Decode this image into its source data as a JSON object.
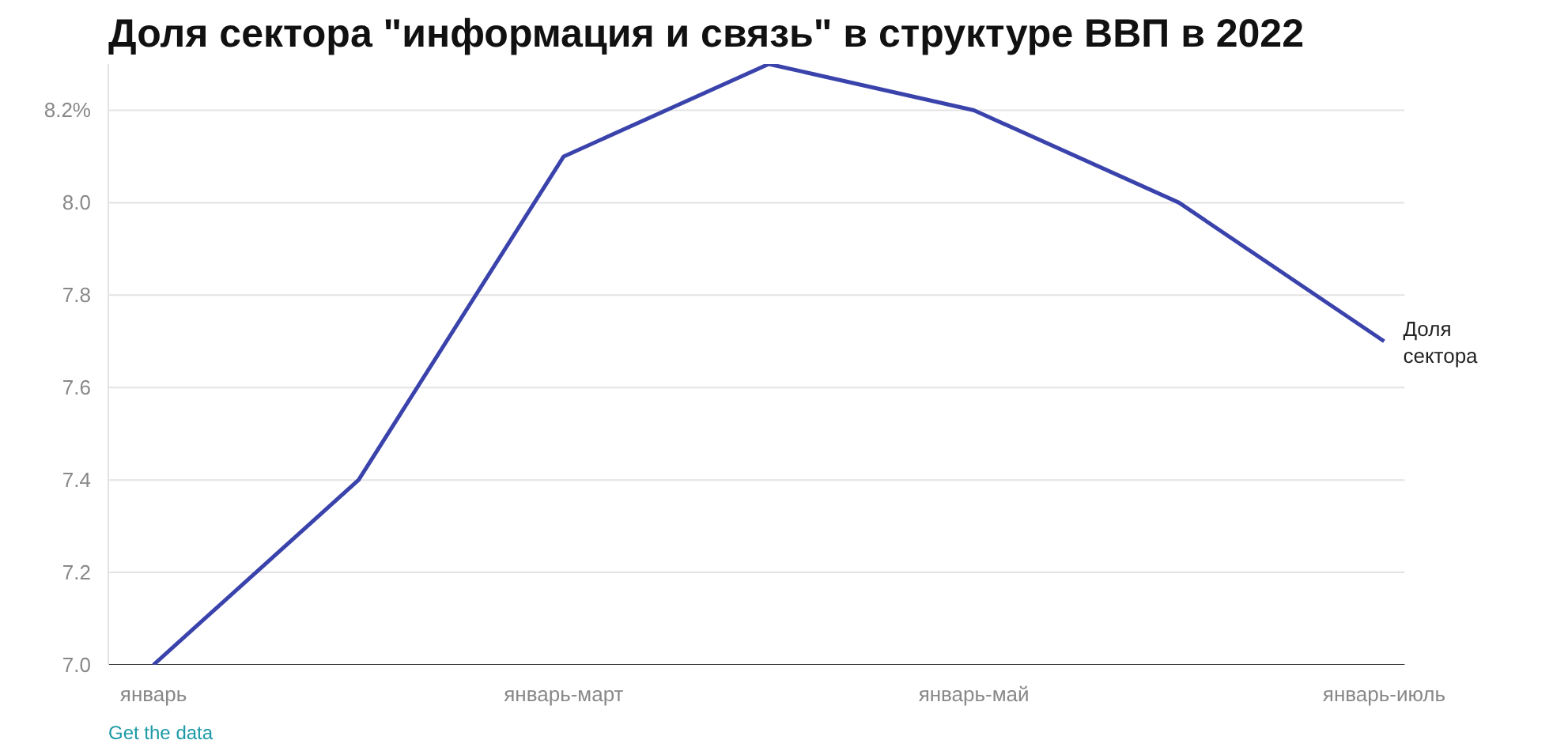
{
  "chart_data": {
    "type": "line",
    "title": "Доля сектора \"информация и связь\" в структуре ВВП в 2022",
    "categories": [
      "январь",
      null,
      "январь-март",
      null,
      "январь-май",
      null,
      "январь-июль"
    ],
    "series": [
      {
        "name": "Доля сектора",
        "color": "#3a43ab",
        "values": [
          7.0,
          7.4,
          8.1,
          8.3,
          8.2,
          8.0,
          7.7
        ]
      }
    ],
    "ylim": [
      7.0,
      8.3
    ],
    "yticks": [
      {
        "value": 7.0,
        "label": "7.0"
      },
      {
        "value": 7.2,
        "label": "7.2"
      },
      {
        "value": 7.4,
        "label": "7.4"
      },
      {
        "value": 7.6,
        "label": "7.6"
      },
      {
        "value": 7.8,
        "label": "7.8"
      },
      {
        "value": 8.0,
        "label": "8.0"
      },
      {
        "value": 8.2,
        "label": "8.2%"
      }
    ],
    "grid": "y",
    "marker": "none",
    "line_style": "solid",
    "annotations": [
      "Get the data"
    ]
  }
}
